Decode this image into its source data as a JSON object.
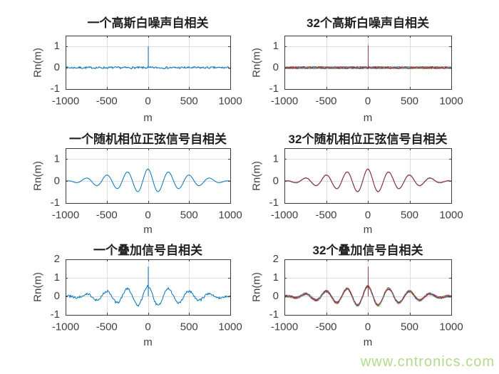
{
  "figure": {
    "background": "#ffffff",
    "axis_color": "#3c3c3c",
    "grid_color": "#dddddd",
    "tick_label_color": "#3f3f3f",
    "title_color": "#1f1f1f",
    "matlab_palette": [
      "#0072BD",
      "#D95319",
      "#EDB120",
      "#7E2F8E",
      "#77AC30",
      "#4DBEEE",
      "#A2142F"
    ]
  },
  "watermark": {
    "text": "www.cntronics.com",
    "color": "#b2d98c"
  },
  "chart_data": [
    {
      "id": "white-noise-single",
      "type": "line",
      "title": "一个高斯白噪声自相关",
      "xlabel": "m",
      "ylabel": "Rn(m)",
      "xlim": [
        -1000,
        1000
      ],
      "ylim": [
        -1,
        1.5
      ],
      "xticks": [
        -1000,
        -500,
        0,
        500,
        1000
      ],
      "yticks": [
        -1,
        0,
        1
      ],
      "grid": true,
      "series": {
        "name": "autocorrelation-of-one-gaussian-white-noise",
        "kind": "noise-spike",
        "ensemble_size": 1,
        "colors": [
          "#0072BD"
        ],
        "noise_amplitude": 0.05,
        "spike": {
          "x": 0,
          "height": 1.0
        }
      }
    },
    {
      "id": "white-noise-ensemble",
      "type": "line",
      "title": "32个高斯白噪声自相关",
      "xlabel": "m",
      "ylabel": "Rn(m)",
      "xlim": [
        -1000,
        1000
      ],
      "ylim": [
        -1,
        1.5
      ],
      "xticks": [
        -1000,
        -500,
        0,
        500,
        1000
      ],
      "yticks": [
        -1,
        0,
        1
      ],
      "grid": true,
      "series": {
        "name": "autocorrelation-of-32-gaussian-white-noises",
        "kind": "noise-spike",
        "ensemble_size": 32,
        "colors": [
          "#0072BD",
          "#D95319",
          "#EDB120",
          "#7E2F8E",
          "#77AC30",
          "#4DBEEE",
          "#A2142F"
        ],
        "noise_amplitude": 0.05,
        "spike": {
          "x": 0,
          "height": 1.12
        }
      }
    },
    {
      "id": "random-phase-sine-single",
      "type": "line",
      "title": "一个随机相位正弦信号自相关",
      "xlabel": "m",
      "ylabel": "Rn(m)",
      "xlim": [
        -1000,
        1000
      ],
      "ylim": [
        -1,
        1.5
      ],
      "xticks": [
        -1000,
        -500,
        0,
        500,
        1000
      ],
      "yticks": [
        -1,
        0,
        1
      ],
      "grid": true,
      "series": {
        "name": "autocorrelation-of-one-random-phase-sine",
        "kind": "damped-cosine",
        "ensemble_size": 1,
        "colors": [
          "#0072BD"
        ],
        "peak": 0.55,
        "period": 250,
        "envelope_zero": 1000,
        "noise_amplitude": 0
      }
    },
    {
      "id": "random-phase-sine-ensemble",
      "type": "line",
      "title": "32个随机相位正弦信号自相关",
      "xlabel": "m",
      "ylabel": "Rn(m)",
      "xlim": [
        -1000,
        1000
      ],
      "ylim": [
        -1,
        1.5
      ],
      "xticks": [
        -1000,
        -500,
        0,
        500,
        1000
      ],
      "yticks": [
        -1,
        0,
        1
      ],
      "grid": true,
      "series": {
        "name": "autocorrelation-of-32-random-phase-sines",
        "kind": "damped-cosine",
        "ensemble_size": 32,
        "colors": [
          "#0072BD",
          "#D95319",
          "#EDB120",
          "#7E2F8E",
          "#77AC30",
          "#4DBEEE",
          "#A2142F"
        ],
        "peak": 0.55,
        "period": 250,
        "envelope_zero": 1000,
        "noise_amplitude": 0.012
      }
    },
    {
      "id": "superposed-signal-single",
      "type": "line",
      "title": "一个叠加信号自相关",
      "xlabel": "m",
      "ylabel": "Rn(m)",
      "xlim": [
        -1000,
        1000
      ],
      "ylim": [
        -1,
        2
      ],
      "xticks": [
        -1000,
        -500,
        0,
        500,
        1000
      ],
      "yticks": [
        -1,
        0,
        1,
        2
      ],
      "grid": true,
      "series": {
        "name": "autocorrelation-of-one-superposed-signal",
        "kind": "damped-cosine-noise-spike",
        "ensemble_size": 1,
        "colors": [
          "#0072BD"
        ],
        "peak": 0.55,
        "period": 250,
        "envelope_zero": 1000,
        "noise_amplitude": 0.06,
        "spike": {
          "x": 0,
          "height": 1.6
        }
      }
    },
    {
      "id": "superposed-signal-ensemble",
      "type": "line",
      "title": "32个叠加信号自相关",
      "xlabel": "m",
      "ylabel": "Rn(m)",
      "xlim": [
        -1000,
        1000
      ],
      "ylim": [
        -1,
        2
      ],
      "xticks": [
        -1000,
        -500,
        0,
        500,
        1000
      ],
      "yticks": [
        -1,
        0,
        1,
        2
      ],
      "grid": true,
      "series": {
        "name": "autocorrelation-of-32-superposed-signals",
        "kind": "damped-cosine-noise-spike",
        "ensemble_size": 32,
        "colors": [
          "#0072BD",
          "#D95319",
          "#EDB120",
          "#7E2F8E",
          "#77AC30",
          "#4DBEEE",
          "#A2142F"
        ],
        "peak": 0.55,
        "period": 250,
        "envelope_zero": 1000,
        "noise_amplitude": 0.06,
        "spike": {
          "x": 0,
          "height": 1.65
        }
      }
    }
  ]
}
